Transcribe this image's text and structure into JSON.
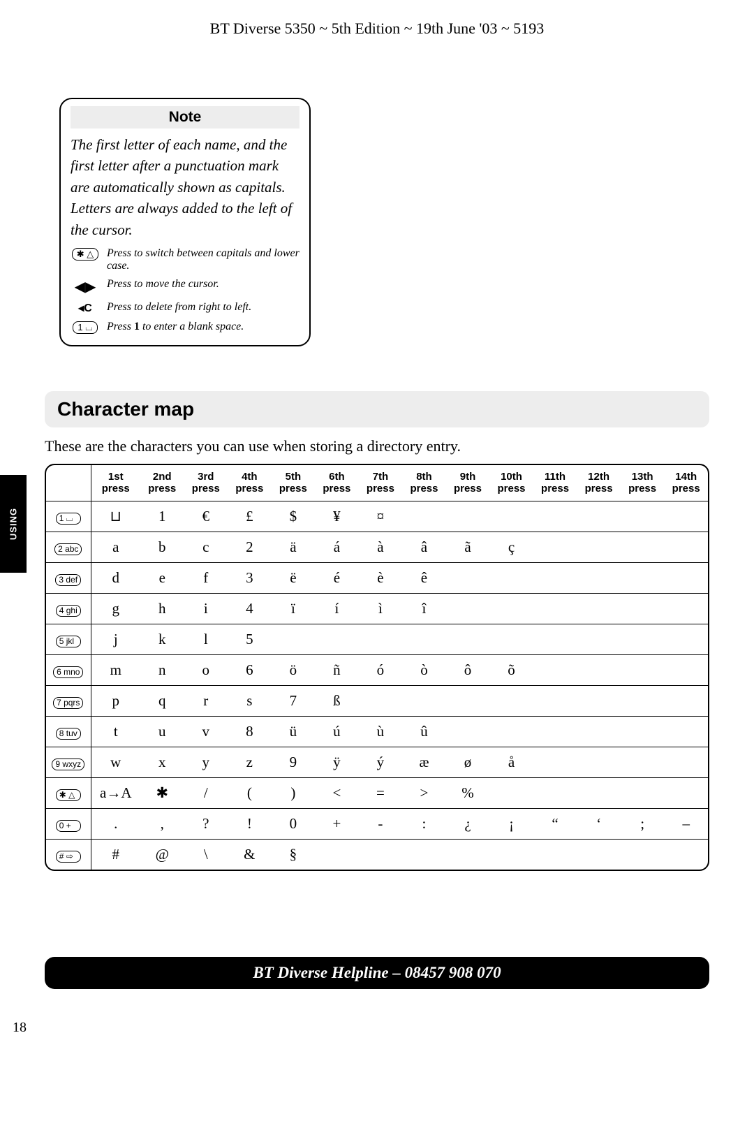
{
  "header": "BT Diverse 5350 ~ 5th Edition ~ 19th June '03 ~ 5193",
  "note": {
    "title": "Note",
    "body": "The first letter of each name, and the first letter after a punctuation mark are automatically shown as capitals. Letters are always added to the left of the cursor.",
    "items": [
      {
        "icon_label": "✱ △",
        "icon_type": "pill",
        "text": "Press to switch between capitals and lower case."
      },
      {
        "icon_label": "◀▶",
        "icon_type": "arrows",
        "text": "Press to move the cursor."
      },
      {
        "icon_label": "◂C",
        "icon_type": "text",
        "text": "Press to delete from right to left."
      },
      {
        "icon_label": "1 ⌴",
        "icon_type": "pill",
        "text_prefix": "Press ",
        "bold": "1",
        "text_suffix": " to enter a blank space."
      }
    ]
  },
  "section": {
    "heading": "Character map",
    "intro": "These are the characters you can use when storing a directory entry."
  },
  "charmap": {
    "headers": [
      "1st",
      "2nd",
      "3rd",
      "4th",
      "5th",
      "6th",
      "7th",
      "8th",
      "9th",
      "10th",
      "11th",
      "12th",
      "13th",
      "14th"
    ],
    "header_sub": "press",
    "rows": [
      {
        "key": "1 ⌴",
        "cells": [
          "⊔",
          "1",
          "€",
          "£",
          "$",
          "¥",
          "¤",
          "",
          "",
          "",
          "",
          "",
          "",
          ""
        ]
      },
      {
        "key": "2 abc",
        "cells": [
          "a",
          "b",
          "c",
          "2",
          "ä",
          "á",
          "à",
          "â",
          "ã",
          "ç",
          "",
          "",
          "",
          ""
        ]
      },
      {
        "key": "3 def",
        "cells": [
          "d",
          "e",
          "f",
          "3",
          "ë",
          "é",
          "è",
          "ê",
          "",
          "",
          "",
          "",
          "",
          ""
        ]
      },
      {
        "key": "4 ghi",
        "cells": [
          "g",
          "h",
          "i",
          "4",
          "ï",
          "í",
          "ì",
          "î",
          "",
          "",
          "",
          "",
          "",
          ""
        ]
      },
      {
        "key": "5 jkl",
        "cells": [
          "j",
          "k",
          "l",
          "5",
          "",
          "",
          "",
          "",
          "",
          "",
          "",
          "",
          "",
          ""
        ]
      },
      {
        "key": "6 mno",
        "cells": [
          "m",
          "n",
          "o",
          "6",
          "ö",
          "ñ",
          "ó",
          "ò",
          "ô",
          "õ",
          "",
          "",
          "",
          ""
        ]
      },
      {
        "key": "7 pqrs",
        "cells": [
          "p",
          "q",
          "r",
          "s",
          "7",
          "ß",
          "",
          "",
          "",
          "",
          "",
          "",
          "",
          ""
        ]
      },
      {
        "key": "8 tuv",
        "cells": [
          "t",
          "u",
          "v",
          "8",
          "ü",
          "ú",
          "ù",
          "û",
          "",
          "",
          "",
          "",
          "",
          ""
        ]
      },
      {
        "key": "9 wxyz",
        "cells": [
          "w",
          "x",
          "y",
          "z",
          "9",
          "ÿ",
          "ý",
          "æ",
          "ø",
          "å",
          "",
          "",
          "",
          ""
        ]
      },
      {
        "key": "✱ △",
        "cells": [
          "a→A",
          "✱",
          "/",
          "(",
          ")",
          "<",
          "=",
          ">",
          "%",
          "",
          "",
          "",
          "",
          ""
        ]
      },
      {
        "key": "0 +",
        "cells": [
          ".",
          ",",
          "?",
          "!",
          "0",
          "+",
          "-",
          ":",
          "¿",
          "¡",
          "“",
          "‘",
          ";",
          "–"
        ]
      },
      {
        "key": "# ⇨",
        "cells": [
          "#",
          "@",
          "\\",
          "&",
          "§",
          "",
          "",
          "",
          "",
          "",
          "",
          "",
          "",
          ""
        ]
      }
    ]
  },
  "side_tab": "USING",
  "helpline": "BT Diverse Helpline – 08457 908 070",
  "page_number": "18"
}
